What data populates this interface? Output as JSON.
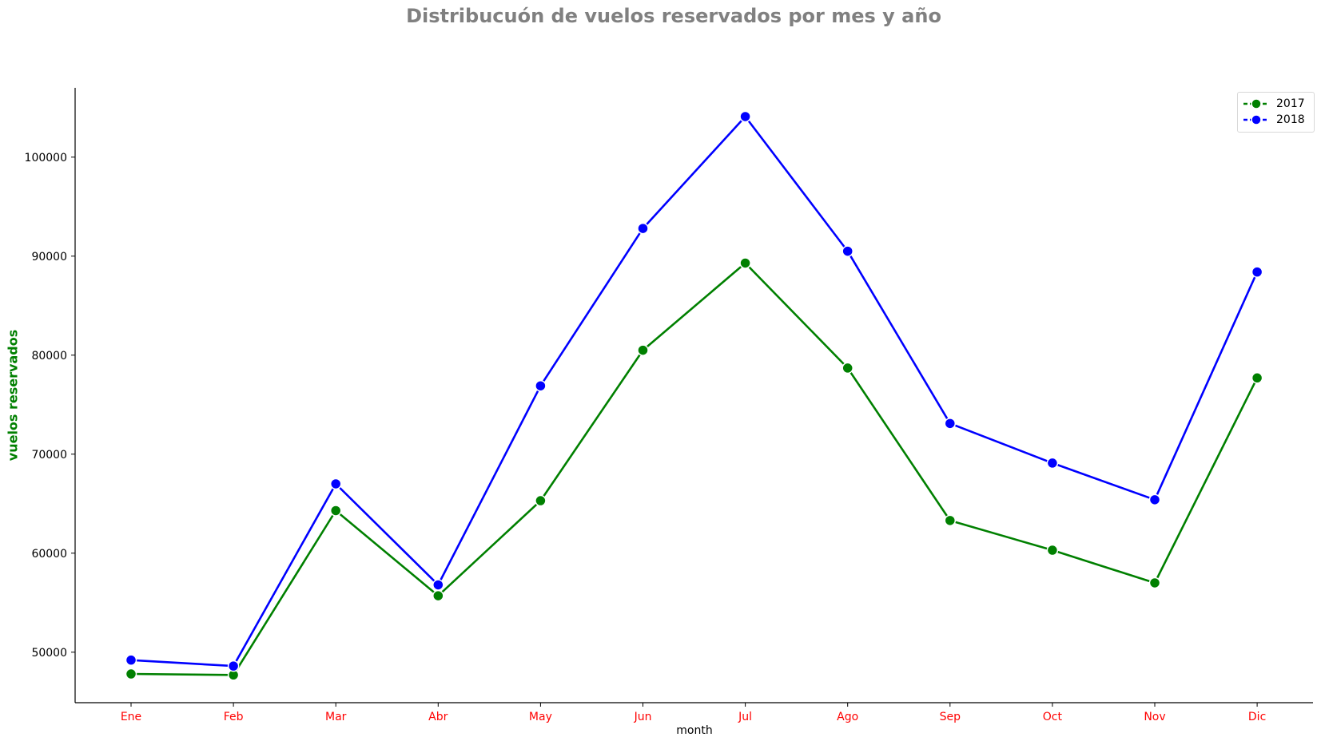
{
  "chart_data": {
    "type": "line",
    "title": "Distribucuón de vuelos reservados por mes y año",
    "xlabel": "month",
    "ylabel": "vuelos reservados",
    "categories": [
      "Ene",
      "Feb",
      "Mar",
      "Abr",
      "May",
      "Jun",
      "Jul",
      "Ago",
      "Sep",
      "Oct",
      "Nov",
      "Dic"
    ],
    "series": [
      {
        "name": "2017",
        "color": "#008000",
        "values": [
          47800,
          47700,
          64300,
          55700,
          65300,
          80500,
          89300,
          78700,
          63300,
          60300,
          57000,
          77700
        ]
      },
      {
        "name": "2018",
        "color": "#0000ff",
        "values": [
          49200,
          48600,
          67000,
          56800,
          76900,
          92800,
          104100,
          90500,
          73100,
          69100,
          65400,
          88400
        ]
      }
    ],
    "yticks": [
      50000,
      60000,
      70000,
      80000,
      90000,
      100000
    ],
    "ylim": [
      44900,
      107000
    ],
    "grid": false,
    "legend_position": "top-right",
    "tick_label_color": "#ff0000",
    "title_color": "#808080",
    "ylabel_color": "#008000"
  }
}
